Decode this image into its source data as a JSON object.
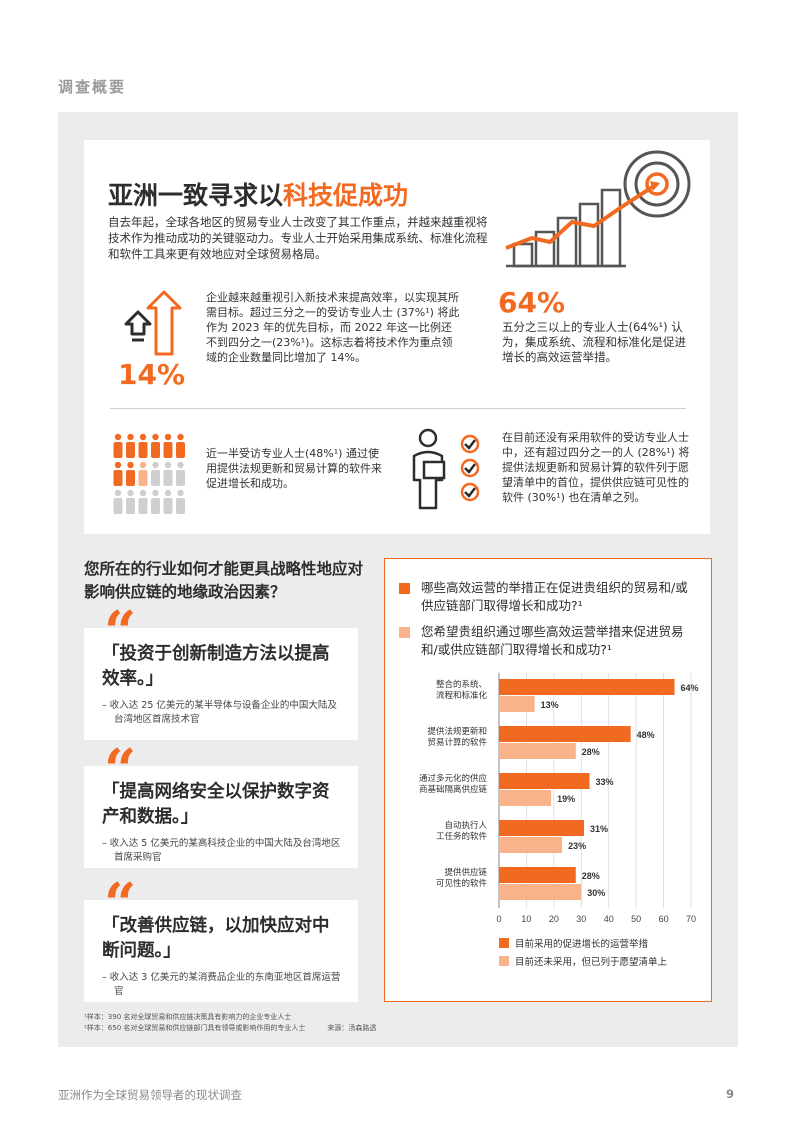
{
  "section_label": "调查概要",
  "card": {
    "title_pre": "亚洲一致寻求以",
    "title_highlight": "科技促成功",
    "intro": "自去年起，全球各地区的贸易专业人士改变了其工作重点，并越来越重视将技术作为推动成功的关键驱动力。专业人士开始采用集成系统、标准化流程和软件工具来更有效地应对全球贸易格局。",
    "stat14_value": "14%",
    "stat14_text": "企业越来越重视引入新技术来提高效率，以实现其所需目标。超过三分之一的受访专业人士 (37%¹) 将此作为 2023 年的优先目标，而 2022 年这一比例还不到四分之一(23%¹)。这标志着将技术作为重点领域的企业数量同比增加了 14%。",
    "stat64_value": "64%",
    "stat64_text": "五分之三以上的专业人士(64%¹) 认为，集成系统、流程和标准化是促进增长的高效运营举措。",
    "people_text": "近一半受访专业人士(48%¹) 通过使用提供法规更新和贸易计算的软件来促进增长和成功。",
    "software_text": "在目前还没有采用软件的受访专业人士中，还有超过四分之一的人 (28%¹) 将提供法规更新和贸易计算的软件列于愿望清单中的首位，提供供应链可见性的软件 (30%¹) 也在清单之列。"
  },
  "question": "您所在的行业如何才能更具战略性地应对影响供应链的地缘政治因素？",
  "quotes": [
    {
      "mark": "“",
      "text": "「投资于创新制造方法以提高效率。」",
      "source": "– 收入达 25 亿美元的某半导体与设备企业的中国大陆及台湾地区首席技术官"
    },
    {
      "mark": "“",
      "text": "「提高网络安全以保护数字资产和数据。」",
      "source": "– 收入达 5 亿美元的某高科技企业的中国大陆及台湾地区首席采购官"
    },
    {
      "mark": "“",
      "text": "「改善供应链，以加快应对中断问题。」",
      "source": "– 收入达 3 亿美元的某消费品企业的东南亚地区首席运营官"
    }
  ],
  "chart_legend_top": [
    "哪些高效运营的举措正在促进贵组织的贸易和/或供应链部门取得增长和成功?¹",
    "您希望贵组织通过哪些高效运营举措来促进贸易和/或供应链部门取得增长和成功?¹"
  ],
  "colors": {
    "accent": "#f26a21",
    "light": "#f9b38a"
  },
  "chart_data": {
    "type": "bar",
    "orientation": "horizontal",
    "categories": [
      "整合的系统、流程和标准化",
      "提供法规更新和贸易计算的软件",
      "通过多元化的供应商基础隔离供应链",
      "自动执行人工任务的软件",
      "提供供应链可见性的软件"
    ],
    "category_lines": [
      [
        "整合的系统、",
        "流程和标准化"
      ],
      [
        "提供法规更新和",
        "贸易计算的软件"
      ],
      [
        "通过多元化的供应",
        "商基础隔离供应链"
      ],
      [
        "自动执行人",
        "工任务的软件"
      ],
      [
        "提供供应链",
        "可见性的软件"
      ]
    ],
    "series": [
      {
        "name": "目前采用的促进增长的运营举措",
        "values": [
          64,
          48,
          33,
          31,
          28
        ],
        "labels": [
          "64%",
          "48%",
          "33%",
          "31%",
          "28%"
        ]
      },
      {
        "name": "目前还未采用，但已列于愿望清单上",
        "values": [
          13,
          28,
          19,
          23,
          30
        ],
        "labels": [
          "13%",
          "28%",
          "19%",
          "23%",
          "30%"
        ]
      }
    ],
    "xticks": [
      "0",
      "10",
      "20",
      "30",
      "40",
      "50",
      "60",
      "70"
    ],
    "xlim": [
      0,
      70
    ],
    "grid": true,
    "legend": "bottom"
  },
  "footnotes": {
    "line1": "¹样本：390 名对全球贸易和供应链决策具有影响力的企业专业人士",
    "line2": "²样本：650 名对全球贸易和供应链部门具有领导或影响作用的专业人士",
    "source": "来源：汤森路透"
  },
  "footer": {
    "title": "亚洲作为全球贸易领导者的现状调查",
    "page": "9"
  }
}
